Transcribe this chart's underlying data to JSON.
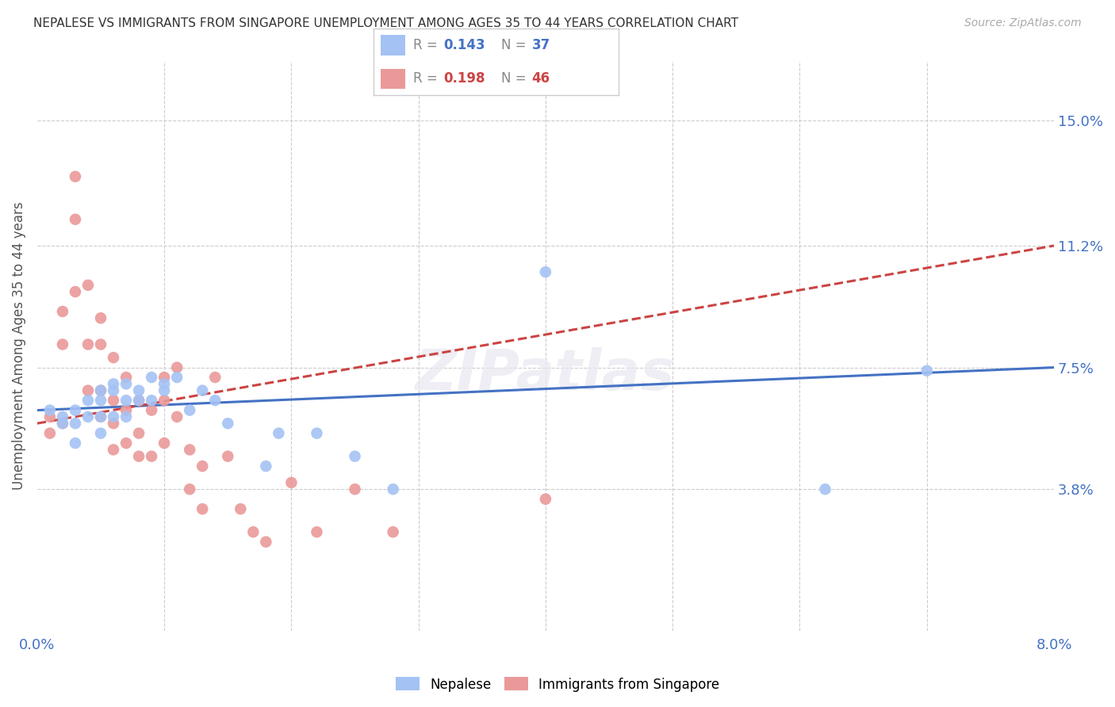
{
  "title": "NEPALESE VS IMMIGRANTS FROM SINGAPORE UNEMPLOYMENT AMONG AGES 35 TO 44 YEARS CORRELATION CHART",
  "source": "Source: ZipAtlas.com",
  "ylabel": "Unemployment Among Ages 35 to 44 years",
  "ytick_labels": [
    "15.0%",
    "11.2%",
    "7.5%",
    "3.8%"
  ],
  "ytick_values": [
    0.15,
    0.112,
    0.075,
    0.038
  ],
  "xlim": [
    0.0,
    0.08
  ],
  "ylim": [
    -0.005,
    0.168
  ],
  "nepalese_color": "#a4c2f4",
  "singapore_color": "#ea9999",
  "nepalese_line_color": "#4472c4",
  "singapore_line_color": "#cc4444",
  "singapore_line_style": "--",
  "legend_R_nepalese": "0.143",
  "legend_N_nepalese": "37",
  "legend_R_singapore": "0.198",
  "legend_N_singapore": "46",
  "nepalese_x": [
    0.001,
    0.002,
    0.002,
    0.003,
    0.003,
    0.003,
    0.004,
    0.004,
    0.005,
    0.005,
    0.005,
    0.005,
    0.006,
    0.006,
    0.006,
    0.007,
    0.007,
    0.007,
    0.008,
    0.008,
    0.009,
    0.009,
    0.01,
    0.01,
    0.011,
    0.012,
    0.013,
    0.014,
    0.015,
    0.018,
    0.019,
    0.022,
    0.025,
    0.028,
    0.04,
    0.062,
    0.07
  ],
  "nepalese_y": [
    0.062,
    0.06,
    0.058,
    0.062,
    0.058,
    0.052,
    0.065,
    0.06,
    0.068,
    0.065,
    0.06,
    0.055,
    0.07,
    0.068,
    0.06,
    0.07,
    0.065,
    0.06,
    0.068,
    0.065,
    0.072,
    0.065,
    0.07,
    0.068,
    0.072,
    0.062,
    0.068,
    0.065,
    0.058,
    0.045,
    0.055,
    0.055,
    0.048,
    0.038,
    0.104,
    0.038,
    0.074
  ],
  "singapore_x": [
    0.001,
    0.001,
    0.002,
    0.002,
    0.002,
    0.003,
    0.003,
    0.003,
    0.004,
    0.004,
    0.004,
    0.005,
    0.005,
    0.005,
    0.005,
    0.006,
    0.006,
    0.006,
    0.006,
    0.007,
    0.007,
    0.007,
    0.008,
    0.008,
    0.008,
    0.009,
    0.009,
    0.01,
    0.01,
    0.01,
    0.011,
    0.011,
    0.012,
    0.012,
    0.013,
    0.013,
    0.014,
    0.015,
    0.016,
    0.017,
    0.018,
    0.02,
    0.022,
    0.025,
    0.028,
    0.04
  ],
  "singapore_y": [
    0.06,
    0.055,
    0.092,
    0.082,
    0.058,
    0.133,
    0.12,
    0.098,
    0.1,
    0.082,
    0.068,
    0.09,
    0.082,
    0.068,
    0.06,
    0.078,
    0.065,
    0.058,
    0.05,
    0.072,
    0.062,
    0.052,
    0.065,
    0.055,
    0.048,
    0.062,
    0.048,
    0.072,
    0.065,
    0.052,
    0.075,
    0.06,
    0.05,
    0.038,
    0.045,
    0.032,
    0.072,
    0.048,
    0.032,
    0.025,
    0.022,
    0.04,
    0.025,
    0.038,
    0.025,
    0.035
  ]
}
